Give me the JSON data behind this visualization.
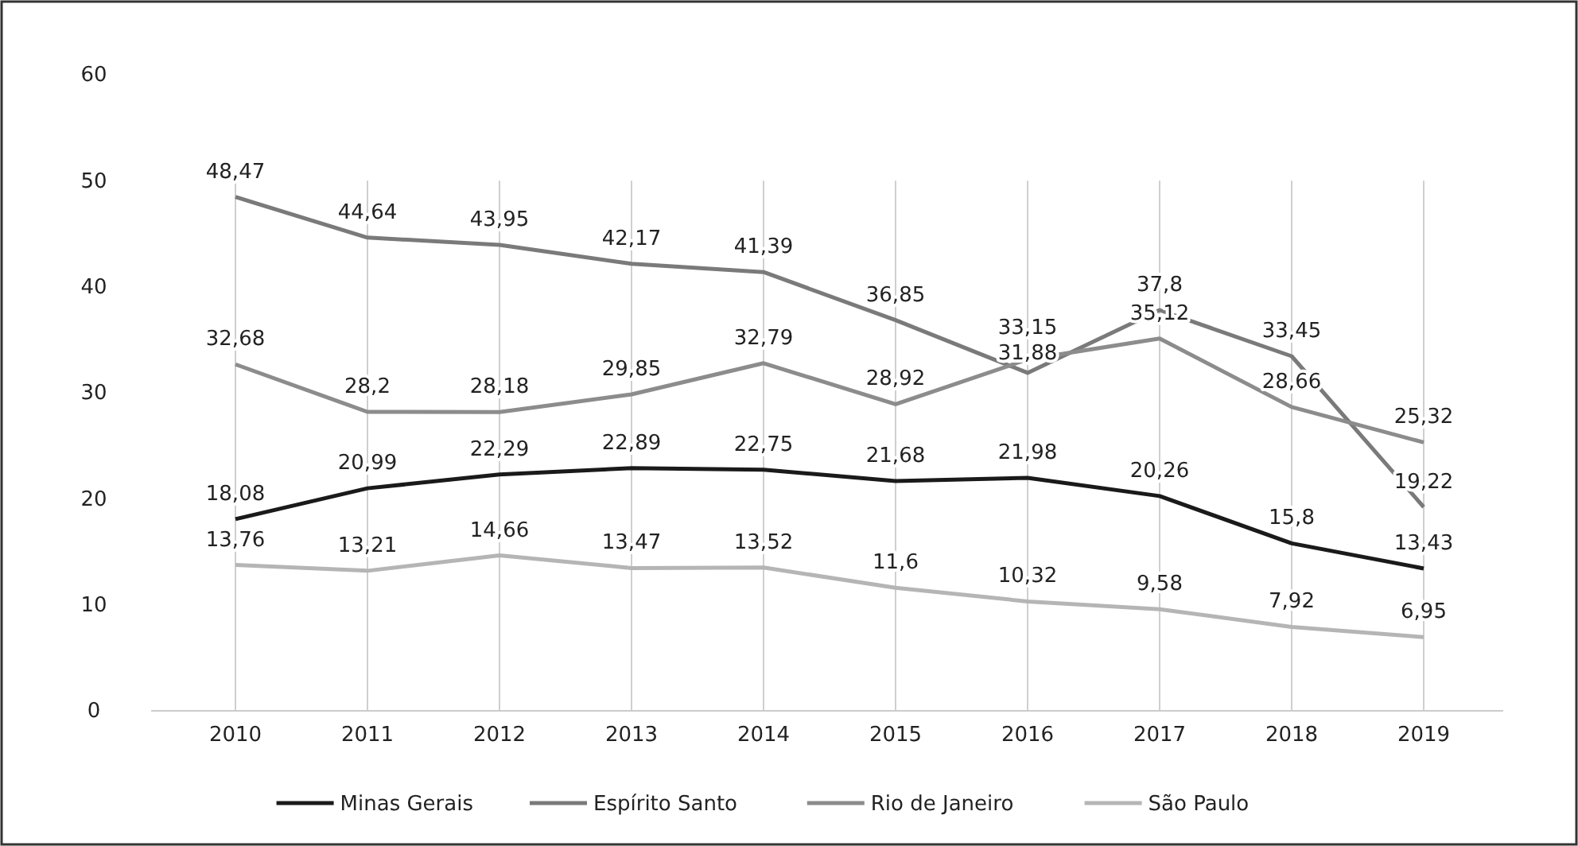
{
  "chart_data": {
    "type": "line",
    "categories": [
      "2010",
      "2011",
      "2012",
      "2013",
      "2014",
      "2015",
      "2016",
      "2017",
      "2018",
      "2019"
    ],
    "ylim": [
      0,
      60
    ],
    "yticks": [
      0,
      10,
      20,
      30,
      40,
      50,
      60
    ],
    "grid": "x",
    "legend": "bottom",
    "marker": "none",
    "line_style": "solid",
    "series": [
      {
        "name": "Minas Gerais",
        "color": "#1a1a1a",
        "values": [
          18.08,
          20.99,
          22.29,
          22.89,
          22.75,
          21.68,
          21.98,
          20.26,
          15.8,
          13.43
        ],
        "value_labels": [
          "18,08",
          "20,99",
          "22,29",
          "22,89",
          "22,75",
          "21,68",
          "21,98",
          "20,26",
          "15,8",
          "13,43"
        ]
      },
      {
        "name": "Espírito Santo",
        "color": "#7a7a7a",
        "values": [
          48.47,
          44.64,
          43.95,
          42.17,
          41.39,
          36.85,
          31.88,
          37.8,
          33.45,
          19.22
        ],
        "value_labels": [
          "48,47",
          "44,64",
          "43,95",
          "42,17",
          "41,39",
          "36,85",
          "31,88",
          "37,8",
          "33,45",
          "19,22"
        ]
      },
      {
        "name": "Rio de Janeiro",
        "color": "#8c8c8c",
        "values": [
          32.68,
          28.2,
          28.18,
          29.85,
          32.79,
          28.92,
          33.15,
          35.12,
          28.66,
          25.32
        ],
        "value_labels": [
          "32,68",
          "28,2",
          "28,18",
          "29,85",
          "32,79",
          "28,92",
          "33,15",
          "35,12",
          "28,66",
          "25,32"
        ]
      },
      {
        "name": "São Paulo",
        "color": "#b5b5b5",
        "values": [
          13.76,
          13.21,
          14.66,
          13.47,
          13.52,
          11.6,
          10.32,
          9.58,
          7.92,
          6.95
        ],
        "value_labels": [
          "13,76",
          "13,21",
          "14,66",
          "13,47",
          "13,52",
          "11,6",
          "10,32",
          "9,58",
          "7,92",
          "6,95"
        ]
      }
    ]
  }
}
